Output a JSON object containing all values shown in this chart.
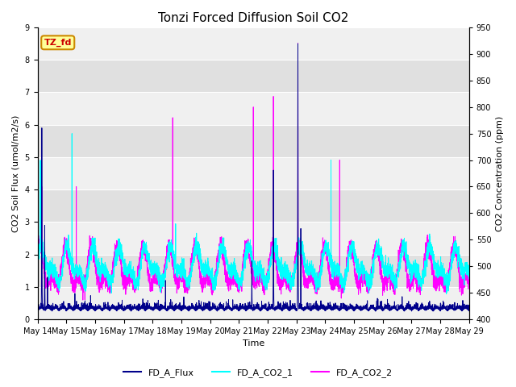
{
  "title": "Tonzi Forced Diffusion Soil CO2",
  "xlabel": "Time",
  "ylabel_left": "CO2 Soil Flux (umol/m2/s)",
  "ylabel_right": "CO2 Concentration (ppm)",
  "ylim_left": [
    0.0,
    9.0
  ],
  "ylim_right": [
    400,
    950
  ],
  "yticks_left": [
    0.0,
    1.0,
    2.0,
    3.0,
    4.0,
    5.0,
    6.0,
    7.0,
    8.0,
    9.0
  ],
  "yticks_right": [
    400,
    450,
    500,
    550,
    600,
    650,
    700,
    750,
    800,
    850,
    900,
    950
  ],
  "xtick_days": [
    14,
    15,
    16,
    17,
    18,
    19,
    20,
    21,
    22,
    23,
    24,
    25,
    26,
    27,
    28,
    29
  ],
  "xtick_labels": [
    "May 14",
    "May 15",
    "May 16",
    "May 17",
    "May 18",
    "May 19",
    "May 20",
    "May 21",
    "May 22",
    "May 23",
    "May 24",
    "May 25",
    "May 26",
    "May 27",
    "May 28",
    "May 29"
  ],
  "color_flux": "#00008B",
  "color_co2_1": "#00FFFF",
  "color_co2_2": "#FF00FF",
  "legend_label_flux": "FD_A_Flux",
  "legend_label_co2_1": "FD_A_CO2_1",
  "legend_label_co2_2": "FD_A_CO2_2",
  "annotation_text": "TZ_fd",
  "annotation_box_facecolor": "#FFFF99",
  "annotation_box_edgecolor": "#CC8800",
  "annotation_text_color": "#CC0000",
  "background_color": "#ffffff",
  "plot_bg_light": "#f0f0f0",
  "plot_bg_dark": "#e0e0e0",
  "grid_color": "#ffffff",
  "title_fontsize": 11,
  "axis_fontsize": 8,
  "tick_fontsize": 7,
  "legend_fontsize": 8,
  "seed": 42,
  "n_points": 4320,
  "days": 15
}
